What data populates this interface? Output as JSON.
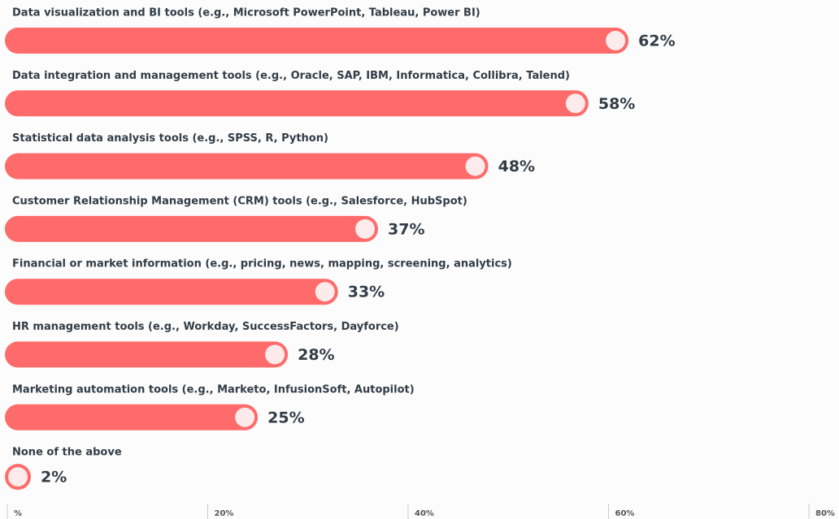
{
  "chart_data": {
    "type": "bar",
    "orientation": "horizontal",
    "categories": [
      "Data visualization and BI tools (e.g., Microsoft PowerPoint, Tableau, Power BI)",
      "Data integration and management tools (e.g., Oracle, SAP, IBM, Informatica, Collibra, Talend)",
      "Statistical data analysis tools (e.g., SPSS, R, Python)",
      "Customer Relationship Management (CRM) tools (e.g., Salesforce, HubSpot)",
      "Financial or market information (e.g., pricing, news, mapping, screening, analytics)",
      "HR management tools (e.g., Workday, SuccessFactors, Dayforce)",
      "Marketing automation tools (e.g., Marketo, InfusionSoft, Autopilot)",
      "None of the above"
    ],
    "values": [
      62,
      58,
      48,
      37,
      33,
      28,
      25,
      2
    ],
    "value_labels": [
      "62%",
      "58%",
      "48%",
      "37%",
      "33%",
      "28%",
      "25%",
      "2%"
    ],
    "color": "#ff6b6b",
    "xlim": [
      0,
      80
    ],
    "xticks": [
      {
        "value": 0,
        "label": "%"
      },
      {
        "value": 20,
        "label": "20%"
      },
      {
        "value": 40,
        "label": "40%"
      },
      {
        "value": 60,
        "label": "60%"
      },
      {
        "value": 80,
        "label": "80%"
      }
    ]
  }
}
